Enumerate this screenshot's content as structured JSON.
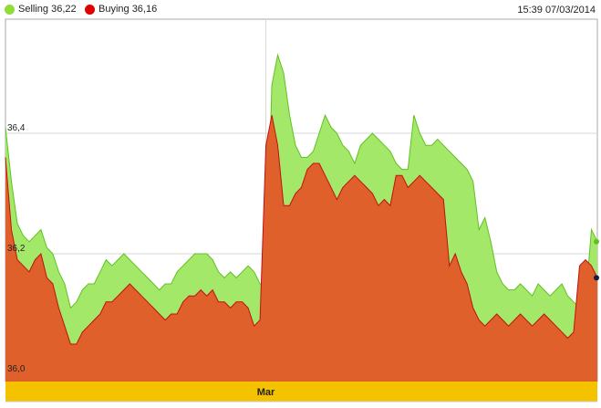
{
  "legend": {
    "selling": {
      "label": "Selling 36,22",
      "color": "#8fdc3a"
    },
    "buying": {
      "label": "Buying 36,16",
      "color": "#e00000"
    }
  },
  "timestamp": "15:39 07/03/2014",
  "colors": {
    "selling_fill": "#a4e86a",
    "selling_line": "#5fc21f",
    "buying_fill": "#e0602c",
    "buying_line": "#c01010",
    "axis_band": "#f5c200",
    "grid": "#d7d7d7",
    "border": "#aaaaaa"
  },
  "chart_data": {
    "type": "area",
    "ylim": [
      36.0,
      36.6
    ],
    "yticks": [
      {
        "value": 36.0,
        "label": "36,0"
      },
      {
        "value": 36.2,
        "label": "36,2"
      },
      {
        "value": 36.4,
        "label": "36,4"
      }
    ],
    "x_index_range": [
      0,
      100
    ],
    "xticks": [
      {
        "index": 44,
        "label": "Mar"
      }
    ],
    "series": [
      {
        "name": "Selling 36,22",
        "x": [
          0,
          1,
          2,
          3,
          4,
          5,
          6,
          7,
          8,
          9,
          10,
          11,
          12,
          13,
          14,
          15,
          16,
          17,
          18,
          19,
          20,
          21,
          22,
          23,
          24,
          25,
          26,
          27,
          28,
          29,
          30,
          31,
          32,
          33,
          34,
          35,
          36,
          37,
          38,
          39,
          40,
          41,
          42,
          43,
          44,
          45,
          46,
          47,
          48,
          49,
          50,
          51,
          52,
          53,
          54,
          55,
          56,
          57,
          58,
          59,
          60,
          61,
          62,
          63,
          64,
          65,
          66,
          67,
          68,
          69,
          70,
          71,
          72,
          73,
          74,
          75,
          76,
          77,
          78,
          79,
          80,
          81,
          82,
          83,
          84,
          85,
          86,
          87,
          88,
          89,
          90,
          91,
          92,
          93,
          94,
          95,
          96,
          97,
          98,
          99,
          100
        ],
        "values": [
          36.41,
          36.32,
          36.25,
          36.23,
          36.22,
          36.23,
          36.24,
          36.21,
          36.2,
          36.17,
          36.15,
          36.11,
          36.12,
          36.14,
          36.15,
          36.15,
          36.17,
          36.19,
          36.18,
          36.19,
          36.2,
          36.19,
          36.18,
          36.17,
          36.16,
          36.15,
          36.14,
          36.15,
          36.15,
          36.17,
          36.18,
          36.19,
          36.2,
          36.2,
          36.2,
          36.19,
          36.17,
          36.16,
          36.17,
          36.16,
          36.17,
          36.18,
          36.17,
          36.15,
          36.15,
          36.48,
          36.53,
          36.5,
          36.43,
          36.38,
          36.36,
          36.36,
          36.37,
          36.4,
          36.43,
          36.41,
          36.4,
          36.38,
          36.37,
          36.35,
          36.38,
          36.39,
          36.4,
          36.39,
          36.38,
          36.37,
          36.35,
          36.34,
          36.34,
          36.43,
          36.4,
          36.38,
          36.38,
          36.39,
          36.38,
          36.37,
          36.36,
          36.35,
          36.34,
          36.32,
          36.24,
          36.26,
          36.22,
          36.17,
          36.15,
          36.14,
          36.14,
          36.15,
          36.14,
          36.13,
          36.15,
          36.14,
          36.13,
          36.14,
          36.15,
          36.13,
          36.12,
          36.11,
          36.12,
          36.24,
          36.22
        ]
      },
      {
        "name": "Buying 36,16",
        "x": [
          0,
          1,
          2,
          3,
          4,
          5,
          6,
          7,
          8,
          9,
          10,
          11,
          12,
          13,
          14,
          15,
          16,
          17,
          18,
          19,
          20,
          21,
          22,
          23,
          24,
          25,
          26,
          27,
          28,
          29,
          30,
          31,
          32,
          33,
          34,
          35,
          36,
          37,
          38,
          39,
          40,
          41,
          42,
          43,
          44,
          45,
          46,
          47,
          48,
          49,
          50,
          51,
          52,
          53,
          54,
          55,
          56,
          57,
          58,
          59,
          60,
          61,
          62,
          63,
          64,
          65,
          66,
          67,
          68,
          69,
          70,
          71,
          72,
          73,
          74,
          75,
          76,
          77,
          78,
          79,
          80,
          81,
          82,
          83,
          84,
          85,
          86,
          87,
          88,
          89,
          90,
          91,
          92,
          93,
          94,
          95,
          96,
          97,
          98,
          99,
          100
        ],
        "values": [
          36.36,
          36.24,
          36.19,
          36.18,
          36.17,
          36.19,
          36.2,
          36.16,
          36.15,
          36.11,
          36.08,
          36.05,
          36.05,
          36.07,
          36.08,
          36.09,
          36.1,
          36.12,
          36.12,
          36.13,
          36.14,
          36.15,
          36.14,
          36.13,
          36.12,
          36.11,
          36.1,
          36.09,
          36.1,
          36.1,
          36.12,
          36.13,
          36.13,
          36.14,
          36.13,
          36.14,
          36.12,
          36.12,
          36.11,
          36.12,
          36.12,
          36.11,
          36.08,
          36.09,
          36.38,
          36.43,
          36.38,
          36.28,
          36.28,
          36.3,
          36.31,
          36.34,
          36.35,
          36.35,
          36.33,
          36.31,
          36.29,
          36.31,
          36.32,
          36.33,
          36.32,
          36.31,
          36.3,
          36.28,
          36.29,
          36.28,
          36.33,
          36.33,
          36.31,
          36.32,
          36.33,
          36.32,
          36.31,
          36.3,
          36.29,
          36.18,
          36.2,
          36.17,
          36.15,
          36.11,
          36.09,
          36.08,
          36.09,
          36.1,
          36.09,
          36.08,
          36.09,
          36.1,
          36.09,
          36.08,
          36.09,
          36.1,
          36.09,
          36.08,
          36.07,
          36.06,
          36.07,
          36.18,
          36.19,
          36.18,
          36.16
        ]
      }
    ]
  }
}
